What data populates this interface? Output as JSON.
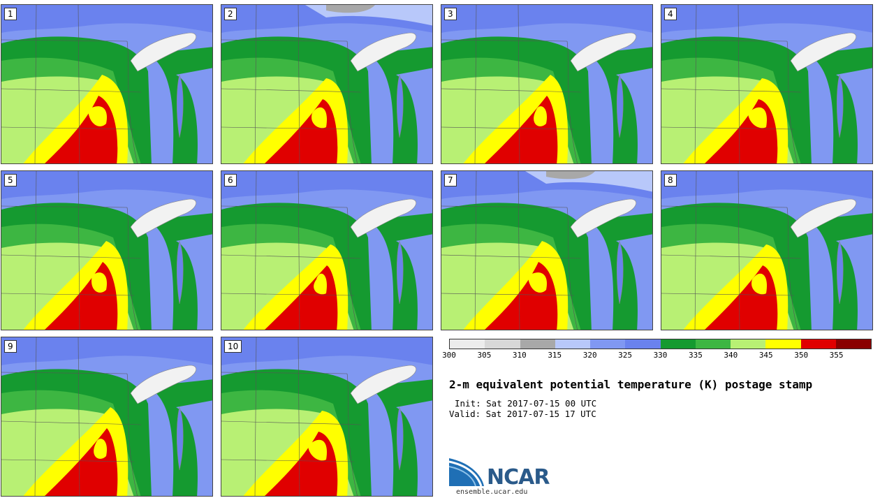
{
  "stamps": [
    {
      "label": "1"
    },
    {
      "label": "2"
    },
    {
      "label": "3"
    },
    {
      "label": "4"
    },
    {
      "label": "5"
    },
    {
      "label": "6"
    },
    {
      "label": "7"
    },
    {
      "label": "8"
    },
    {
      "label": "9"
    },
    {
      "label": "10"
    }
  ],
  "colorbar": {
    "colors": [
      "#ececec",
      "#d8d8d8",
      "#a8a8a8",
      "#b8c8fa",
      "#8098f2",
      "#6a82ee",
      "#159a30",
      "#3db642",
      "#b8f074",
      "#ffff00",
      "#e00000",
      "#8a0000"
    ],
    "ticks": [
      "300",
      "305",
      "310",
      "315",
      "320",
      "325",
      "330",
      "335",
      "340",
      "345",
      "350",
      "355"
    ]
  },
  "title": "2-m equivalent potential temperature (K) postage stamp",
  "init": "Init: Sat 2017-07-15 00 UTC",
  "valid": "Valid: Sat 2017-07-15 17 UTC",
  "logo": {
    "text": "NCAR",
    "url": "ensemble.ucar.edu",
    "color": "#2a5a8a"
  }
}
